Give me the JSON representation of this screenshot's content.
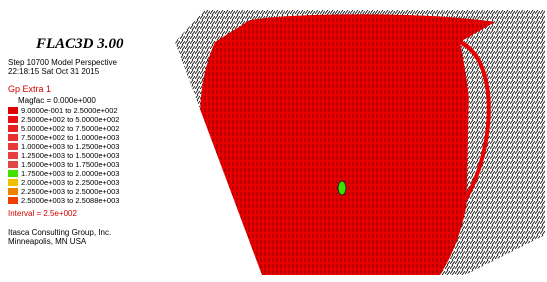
{
  "header": {
    "title": "FLAC3D 3.00",
    "step": "Step 10700 Model Perspective",
    "timestamp": "22:18:15 Sat Oct 31 2015"
  },
  "legend": {
    "title": "Gp Extra 1",
    "magfac": "Magfac = 0.000e+000",
    "items": [
      {
        "label": "9.0000e-001 to 2.5000e+002",
        "color": "#e00000"
      },
      {
        "label": "2.5000e+002 to 5.0000e+002",
        "color": "#e81010"
      },
      {
        "label": "5.0000e+002 to 7.5000e+002",
        "color": "#e82020"
      },
      {
        "label": "7.5000e+002 to 1.0000e+003",
        "color": "#e83030"
      },
      {
        "label": "1.0000e+003 to 1.2500e+003",
        "color": "#e83838"
      },
      {
        "label": "1.2500e+003 to 1.5000e+003",
        "color": "#e84040"
      },
      {
        "label": "1.5000e+003 to 1.7500e+003",
        "color": "#e04848"
      },
      {
        "label": "1.7500e+003 to 2.0000e+003",
        "color": "#40e000"
      },
      {
        "label": "2.0000e+003 to 2.2500e+003",
        "color": "#f0c000"
      },
      {
        "label": "2.2500e+003 to 2.5000e+003",
        "color": "#f08000"
      },
      {
        "label": "2.5000e+003 to 2.5088e+003",
        "color": "#f04000"
      }
    ],
    "interval": "Interval = 2.5e+002"
  },
  "footer": {
    "company": "Itasca Consulting Group, Inc.",
    "location": "Minneapolis, MN USA"
  }
}
